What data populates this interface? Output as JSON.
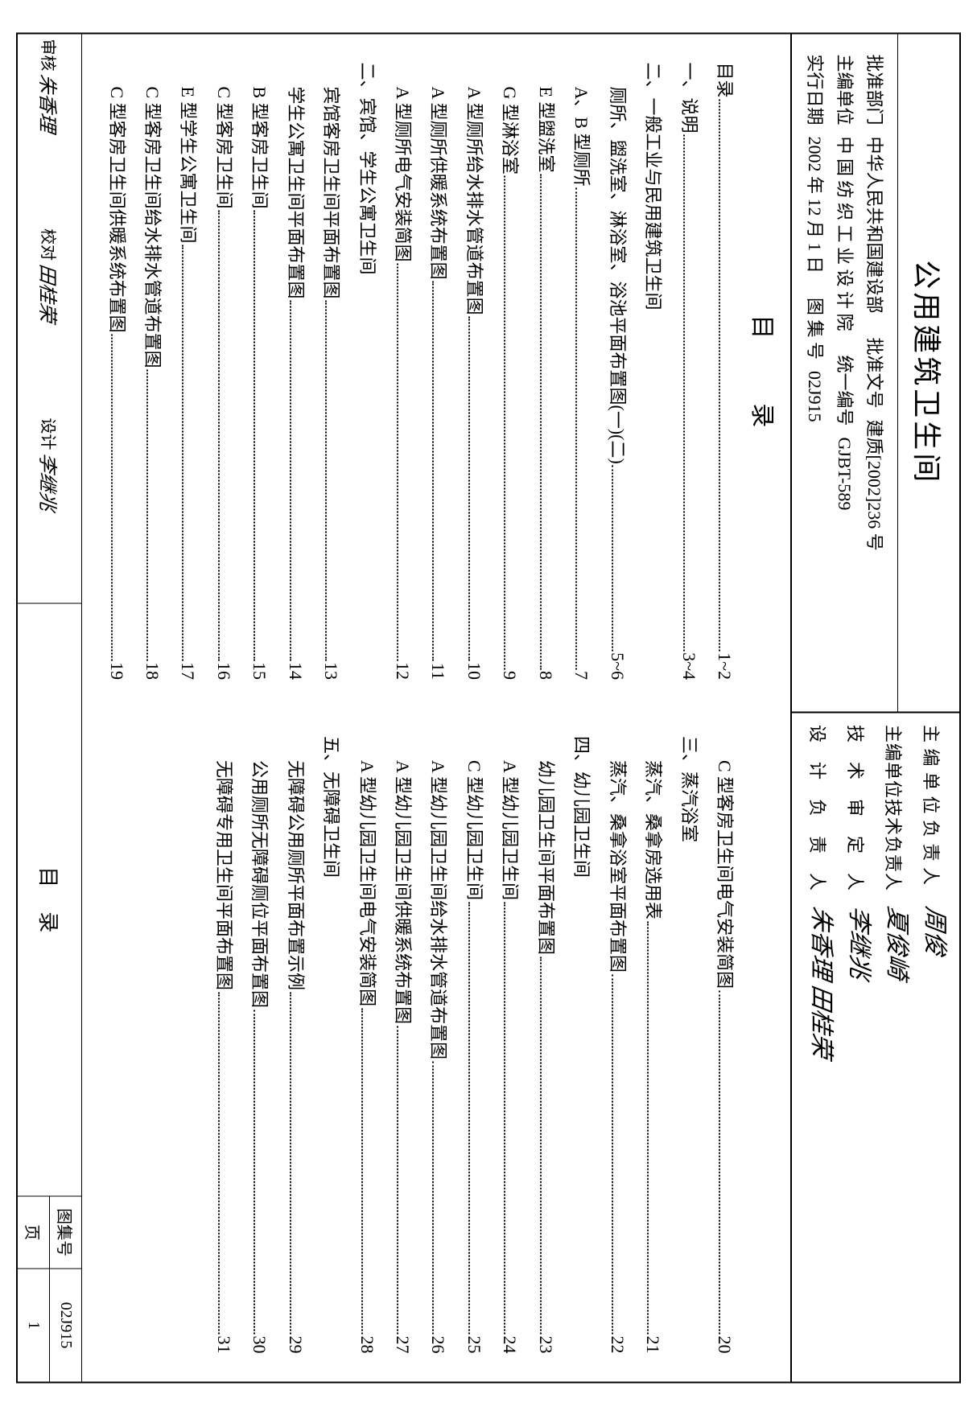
{
  "title": "公用建筑卫生间",
  "info": {
    "approve_dept_label": "批准部门",
    "approve_dept_value": "中华人民共和国建设部",
    "approve_no_label": "批准文号",
    "approve_no_value": "建质[2002]236 号",
    "editor_unit_label": "主编单位",
    "editor_unit_value": "中 国 纺 织 工 业 设 计 院",
    "unified_no_label": "统一编号",
    "unified_no_value": "GJBT-589",
    "effective_date_label": "实行日期",
    "effective_date_value": "2002 年 12 月 1 日",
    "atlas_no_label": "图 集 号",
    "atlas_no_value": "02J915"
  },
  "signatures": {
    "s1_label": "主 编 单 位 负 责 人",
    "s1_sig": "周俊",
    "s2_label": "主编单位技术负责人",
    "s2_sig": "夏俊崎",
    "s3_label": "技　术　审　定　人",
    "s3_sig": "李继兆",
    "s4_label": "设　计　负　责　人",
    "s4_sig": "朱香理 田桂荣"
  },
  "contents_heading": "目录",
  "toc_left": [
    {
      "type": "item",
      "label": "目录",
      "page": "1~2",
      "indent": 0
    },
    {
      "type": "section",
      "label": "一、说明",
      "page": "3~4"
    },
    {
      "type": "section",
      "label": "二、一般工业与民用建筑卫生间",
      "page": ""
    },
    {
      "type": "item",
      "label": "厕所、盥洗室、淋浴室、浴池平面布置图(一)(二)",
      "page": "5~6"
    },
    {
      "type": "item",
      "label": "A、B 型厕所",
      "page": "7"
    },
    {
      "type": "item",
      "label": "E 型盥洗室",
      "page": "8"
    },
    {
      "type": "item",
      "label": "G 型淋浴室",
      "page": "9"
    },
    {
      "type": "item",
      "label": "A 型厕所给水排水管道布置图",
      "page": "10"
    },
    {
      "type": "item",
      "label": "A 型厕所供暖系统布置图",
      "page": "11"
    },
    {
      "type": "item",
      "label": "A 型厕所电气安装简图",
      "page": "12"
    },
    {
      "type": "section",
      "label": "二、宾馆、学生公寓卫生间",
      "page": ""
    },
    {
      "type": "item",
      "label": "宾馆客房卫生间平面布置图",
      "page": "13"
    },
    {
      "type": "item",
      "label": "学生公寓卫生间平面布置图",
      "page": "14"
    },
    {
      "type": "item",
      "label": "B 型客房卫生间",
      "page": "15"
    },
    {
      "type": "item",
      "label": "C 型客房卫生间",
      "page": "16"
    },
    {
      "type": "item",
      "label": "E 型学生公寓卫生间",
      "page": "17"
    },
    {
      "type": "item",
      "label": "C 型客房卫生间给水排水管道布置图",
      "page": "18"
    },
    {
      "type": "item",
      "label": "C 型客房卫生间供暖系统布置图",
      "page": "19"
    }
  ],
  "toc_right": [
    {
      "type": "item",
      "label": "C 型客房卫生间电气安装简图",
      "page": "20"
    },
    {
      "type": "section",
      "label": "三、蒸汽浴室",
      "page": ""
    },
    {
      "type": "item",
      "label": "蒸汽、桑拿房选用表",
      "page": "21"
    },
    {
      "type": "item",
      "label": "蒸汽、桑拿浴室平面布置图",
      "page": "22"
    },
    {
      "type": "section",
      "label": "四、幼儿园卫生间",
      "page": ""
    },
    {
      "type": "item",
      "label": "幼儿园卫生间平面布置图",
      "page": "23"
    },
    {
      "type": "item",
      "label": "A 型幼儿园卫生间",
      "page": "24"
    },
    {
      "type": "item",
      "label": "C 型幼儿园卫生间",
      "page": "25"
    },
    {
      "type": "item",
      "label": "A 型幼儿园卫生间给水排水管道布置图",
      "page": "26"
    },
    {
      "type": "item",
      "label": "A 型幼儿园卫生间供暖系统布置图",
      "page": "27"
    },
    {
      "type": "item",
      "label": "A 型幼儿园卫生间电气安装简图",
      "page": "28"
    },
    {
      "type": "section",
      "label": "五、无障碍卫生间",
      "page": ""
    },
    {
      "type": "item",
      "label": "无障碍公用厕所平面布置示例",
      "page": "29"
    },
    {
      "type": "item",
      "label": "公用厕所无障碍厕位平面布置图",
      "page": "30"
    },
    {
      "type": "item",
      "label": "无障碍专用卫生间平面布置图",
      "page": "31"
    }
  ],
  "footer": {
    "approve_label": "审核",
    "approve_sig": "朱香理",
    "check_label": "校对",
    "check_sig": "田桂荣",
    "design_label": "设计",
    "design_sig": "李继兆",
    "footer_title": "目录",
    "atlas_label": "图集号",
    "atlas_value": "02J915",
    "page_label": "页",
    "page_value": "1"
  }
}
